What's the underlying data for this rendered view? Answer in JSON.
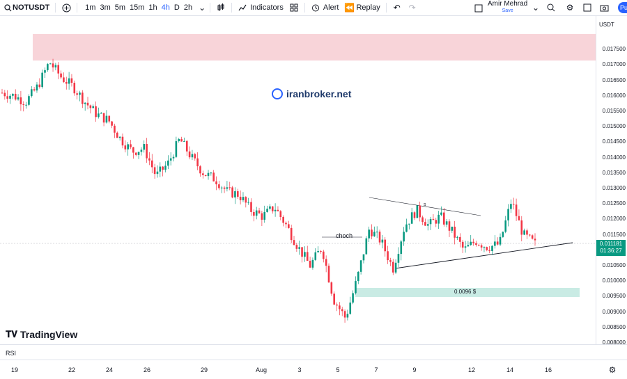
{
  "toolbar": {
    "symbol": "NOTUSDT",
    "timeframes": [
      "1m",
      "3m",
      "5m",
      "15m",
      "1h",
      "4h",
      "D",
      "2h"
    ],
    "active_timeframe": "4h",
    "indicators_label": "Indicators",
    "alert_label": "Alert",
    "replay_label": "Replay",
    "user_name": "Amir Mehrad",
    "save_label": "Save",
    "publish_label": "Pu"
  },
  "chart": {
    "currency": "USDT",
    "watermark": "iranbroker.net",
    "brand": "TradingView",
    "choch_label": "choch",
    "s_label": "s",
    "support_label": "0.0096 $",
    "current_price": "0.011181",
    "countdown": "01:36:27",
    "indicator_pane": "RSI",
    "colors": {
      "up": "#089981",
      "down": "#f23645",
      "resist_zone": "#f8d4d9",
      "support_zone": "#c9ebe4",
      "accent": "#2962ff"
    }
  },
  "chart_data": {
    "type": "candlestick",
    "symbol": "NOTUSDT",
    "y_ticks": [
      "0.017500",
      "0.017000",
      "0.016500",
      "0.016000",
      "0.015500",
      "0.015000",
      "0.014500",
      "0.014000",
      "0.013500",
      "0.013000",
      "0.012500",
      "0.012000",
      "0.011500",
      "0.010500",
      "0.010000",
      "0.009500",
      "0.009000",
      "0.008500",
      "0.008000"
    ],
    "ylim": [
      0.008,
      0.018
    ],
    "x_ticks": [
      "19",
      "22",
      "24",
      "26",
      "29",
      "Aug",
      "3",
      "5",
      "7",
      "9",
      "12",
      "14",
      "16"
    ],
    "approx_close_path": [
      0.0161,
      0.016,
      0.0158,
      0.0163,
      0.0171,
      0.0166,
      0.0163,
      0.0158,
      0.0154,
      0.0152,
      0.0146,
      0.0142,
      0.0143,
      0.0134,
      0.0138,
      0.0146,
      0.014,
      0.0135,
      0.0133,
      0.0129,
      0.0128,
      0.0123,
      0.0121,
      0.0124,
      0.0118,
      0.0111,
      0.0105,
      0.0111,
      0.0094,
      0.0088,
      0.0101,
      0.0117,
      0.0113,
      0.0104,
      0.0118,
      0.0123,
      0.0118,
      0.0121,
      0.0116,
      0.011,
      0.0113,
      0.0111,
      0.0112,
      0.0126,
      0.0115,
      0.0112
    ],
    "resistance_zone": [
      0.0171,
      0.0179
    ],
    "support_zone": [
      0.0093,
      0.0096
    ],
    "last_price": 0.011181
  }
}
